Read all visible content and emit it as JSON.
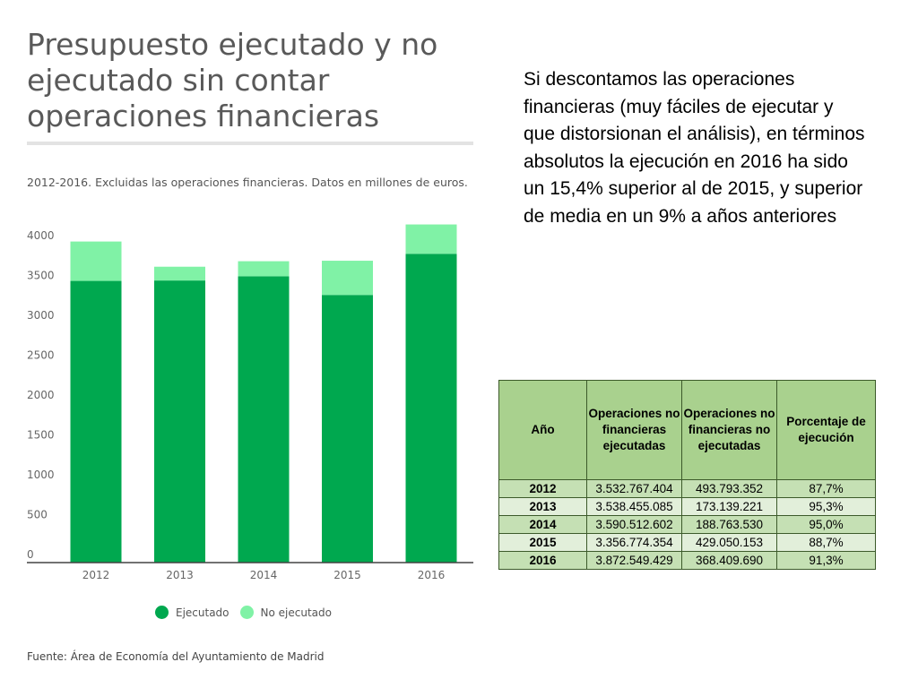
{
  "chart_header": {
    "title": "Presupuesto ejecutado y no ejecutado sin contar operaciones financieras",
    "subtitle": "2012-2016. Excluidas las operaciones financieras. Datos en millones de euros.",
    "source": "Fuente: Área de Economía del Ayuntamiento de Madrid"
  },
  "chart_data": {
    "type": "bar",
    "stacked": true,
    "title": "Presupuesto ejecutado y no ejecutado sin contar operaciones financieras",
    "subtitle": "2012-2016. Excluidas las operaciones financieras. Datos en millones de euros.",
    "categories": [
      "2012",
      "2013",
      "2014",
      "2015",
      "2016"
    ],
    "series": [
      {
        "name": "Ejecutado",
        "values": [
          3533,
          3538,
          3591,
          3357,
          3873
        ],
        "color": "#00a84f"
      },
      {
        "name": "No ejecutado",
        "values": [
          494,
          173,
          189,
          429,
          368
        ],
        "color": "#80f2a6"
      }
    ],
    "ylim": [
      0,
      4000
    ],
    "yticks": [
      "0",
      "500",
      "1000",
      "1500",
      "2000",
      "2500",
      "3000",
      "3500",
      "4000"
    ],
    "grid": false,
    "legend": "bottom"
  },
  "body_text": "Si descontamos las operaciones financieras (muy fáciles de ejecutar y que distorsionan el análisis), en términos absolutos la ejecución en 2016 ha sido un 15,4% superior al de 2015, y superior de media en un 9% a años anteriores",
  "table": {
    "headers": [
      "Año",
      "Operaciones no financieras ejecutadas",
      "Operaciones no financieras no ejecutadas",
      "Porcentaje de ejecución"
    ],
    "rows": [
      [
        "2012",
        "3.532.767.404",
        "493.793.352",
        "87,7%"
      ],
      [
        "2013",
        "3.538.455.085",
        "173.139.221",
        "95,3%"
      ],
      [
        "2014",
        "3.590.512.602",
        "188.763.530",
        "95,0%"
      ],
      [
        "2015",
        "3.356.774.354",
        "429.050.153",
        "88,7%"
      ],
      [
        "2016",
        "3.872.549.429",
        "368.409.690",
        "91,3%"
      ]
    ],
    "header_color": "#a9d18e",
    "row_colors": [
      "#c5e0b4",
      "#e2efda"
    ]
  }
}
